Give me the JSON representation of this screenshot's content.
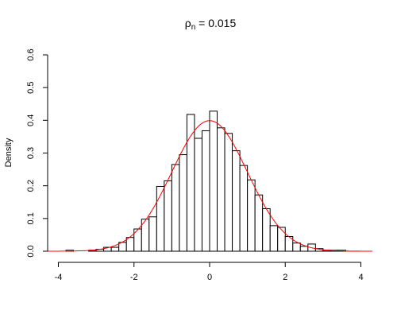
{
  "chart_data": {
    "type": "bar",
    "title": "ρn = 0.015",
    "title_main": "ρ",
    "title_sub": "n",
    "title_rest": " = 0.015",
    "xlabel": "",
    "ylabel": "Density",
    "xlim": [
      -4,
      4
    ],
    "ylim": [
      0,
      0.6
    ],
    "x_ticks": [
      -4,
      -2,
      0,
      2,
      4
    ],
    "x_tick_labels": [
      "-4",
      "-2",
      "0",
      "2",
      "4"
    ],
    "y_ticks": [
      0.0,
      0.1,
      0.2,
      0.3,
      0.4,
      0.5,
      0.6
    ],
    "y_tick_labels": [
      "0.0",
      "0.1",
      "0.2",
      "0.3",
      "0.4",
      "0.5",
      "0.6"
    ],
    "grid": false,
    "bin_width": 0.2,
    "bins_start": [
      -3.8,
      -3.2,
      -3.0,
      -2.8,
      -2.6,
      -2.4,
      -2.2,
      -2.0,
      -1.8,
      -1.6,
      -1.4,
      -1.2,
      -1.0,
      -0.8,
      -0.6,
      -0.4,
      -0.2,
      0.0,
      0.2,
      0.4,
      0.6,
      0.8,
      1.0,
      1.2,
      1.4,
      1.6,
      1.8,
      2.0,
      2.2,
      2.4,
      2.6,
      2.8,
      3.0,
      3.2,
      3.4
    ],
    "values": [
      0.003,
      0.003,
      0.006,
      0.012,
      0.012,
      0.027,
      0.042,
      0.068,
      0.098,
      0.105,
      0.198,
      0.215,
      0.265,
      0.295,
      0.418,
      0.345,
      0.368,
      0.428,
      0.377,
      0.36,
      0.307,
      0.262,
      0.218,
      0.172,
      0.13,
      0.078,
      0.073,
      0.045,
      0.025,
      0.015,
      0.022,
      0.008,
      0.003,
      0.003,
      0.003
    ],
    "density_curve": {
      "color": "#ff0000",
      "mean": 0,
      "sd": 1,
      "x_range": [
        -4.3,
        4.3
      ]
    },
    "colors": {
      "bar_fill": "#ffffff",
      "bar_stroke": "#000000",
      "curve": "#ff0000"
    }
  }
}
